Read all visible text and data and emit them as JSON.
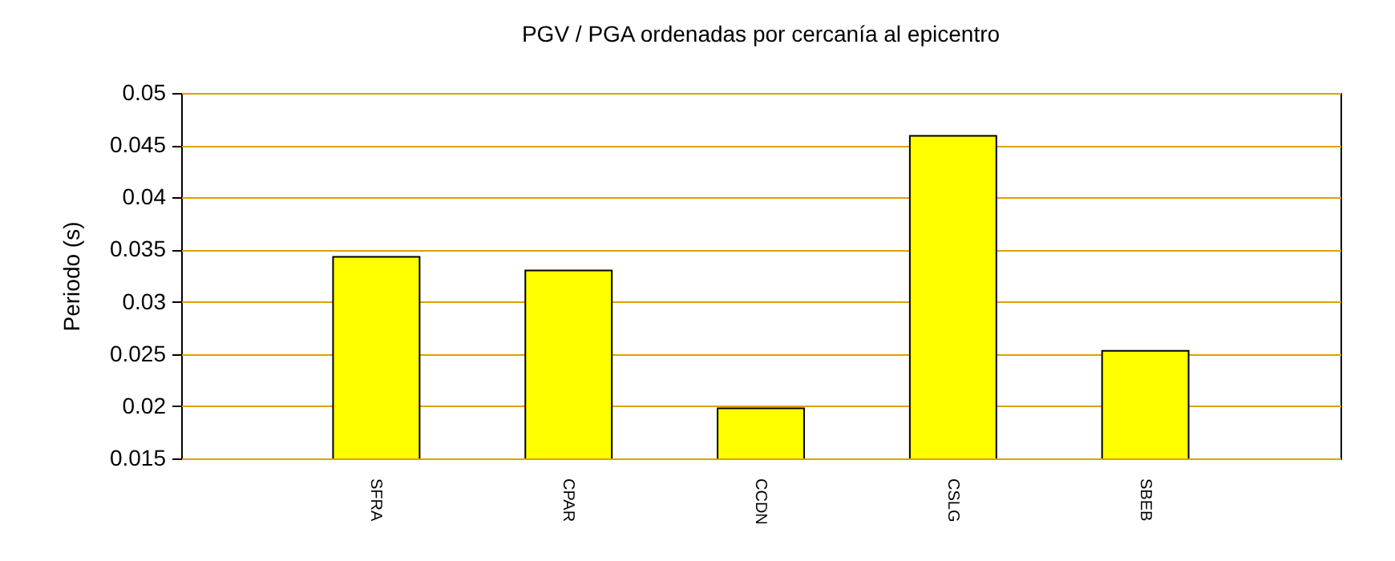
{
  "chart_data": {
    "type": "bar",
    "title": "PGV / PGA ordenadas por cercanía al epicentro",
    "ylabel": "Periodo (s)",
    "categories": [
      "SFRA",
      "CPAR",
      "CCDN",
      "CSLG",
      "SBEB"
    ],
    "values": [
      0.0343,
      0.033,
      0.0198,
      0.0459,
      0.0253
    ],
    "color": "#ffff00",
    "ylim": [
      0.015,
      0.05
    ],
    "yticks": [
      0.015,
      0.02,
      0.025,
      0.03,
      0.035,
      0.04,
      0.045,
      0.05
    ],
    "grid": "y"
  }
}
